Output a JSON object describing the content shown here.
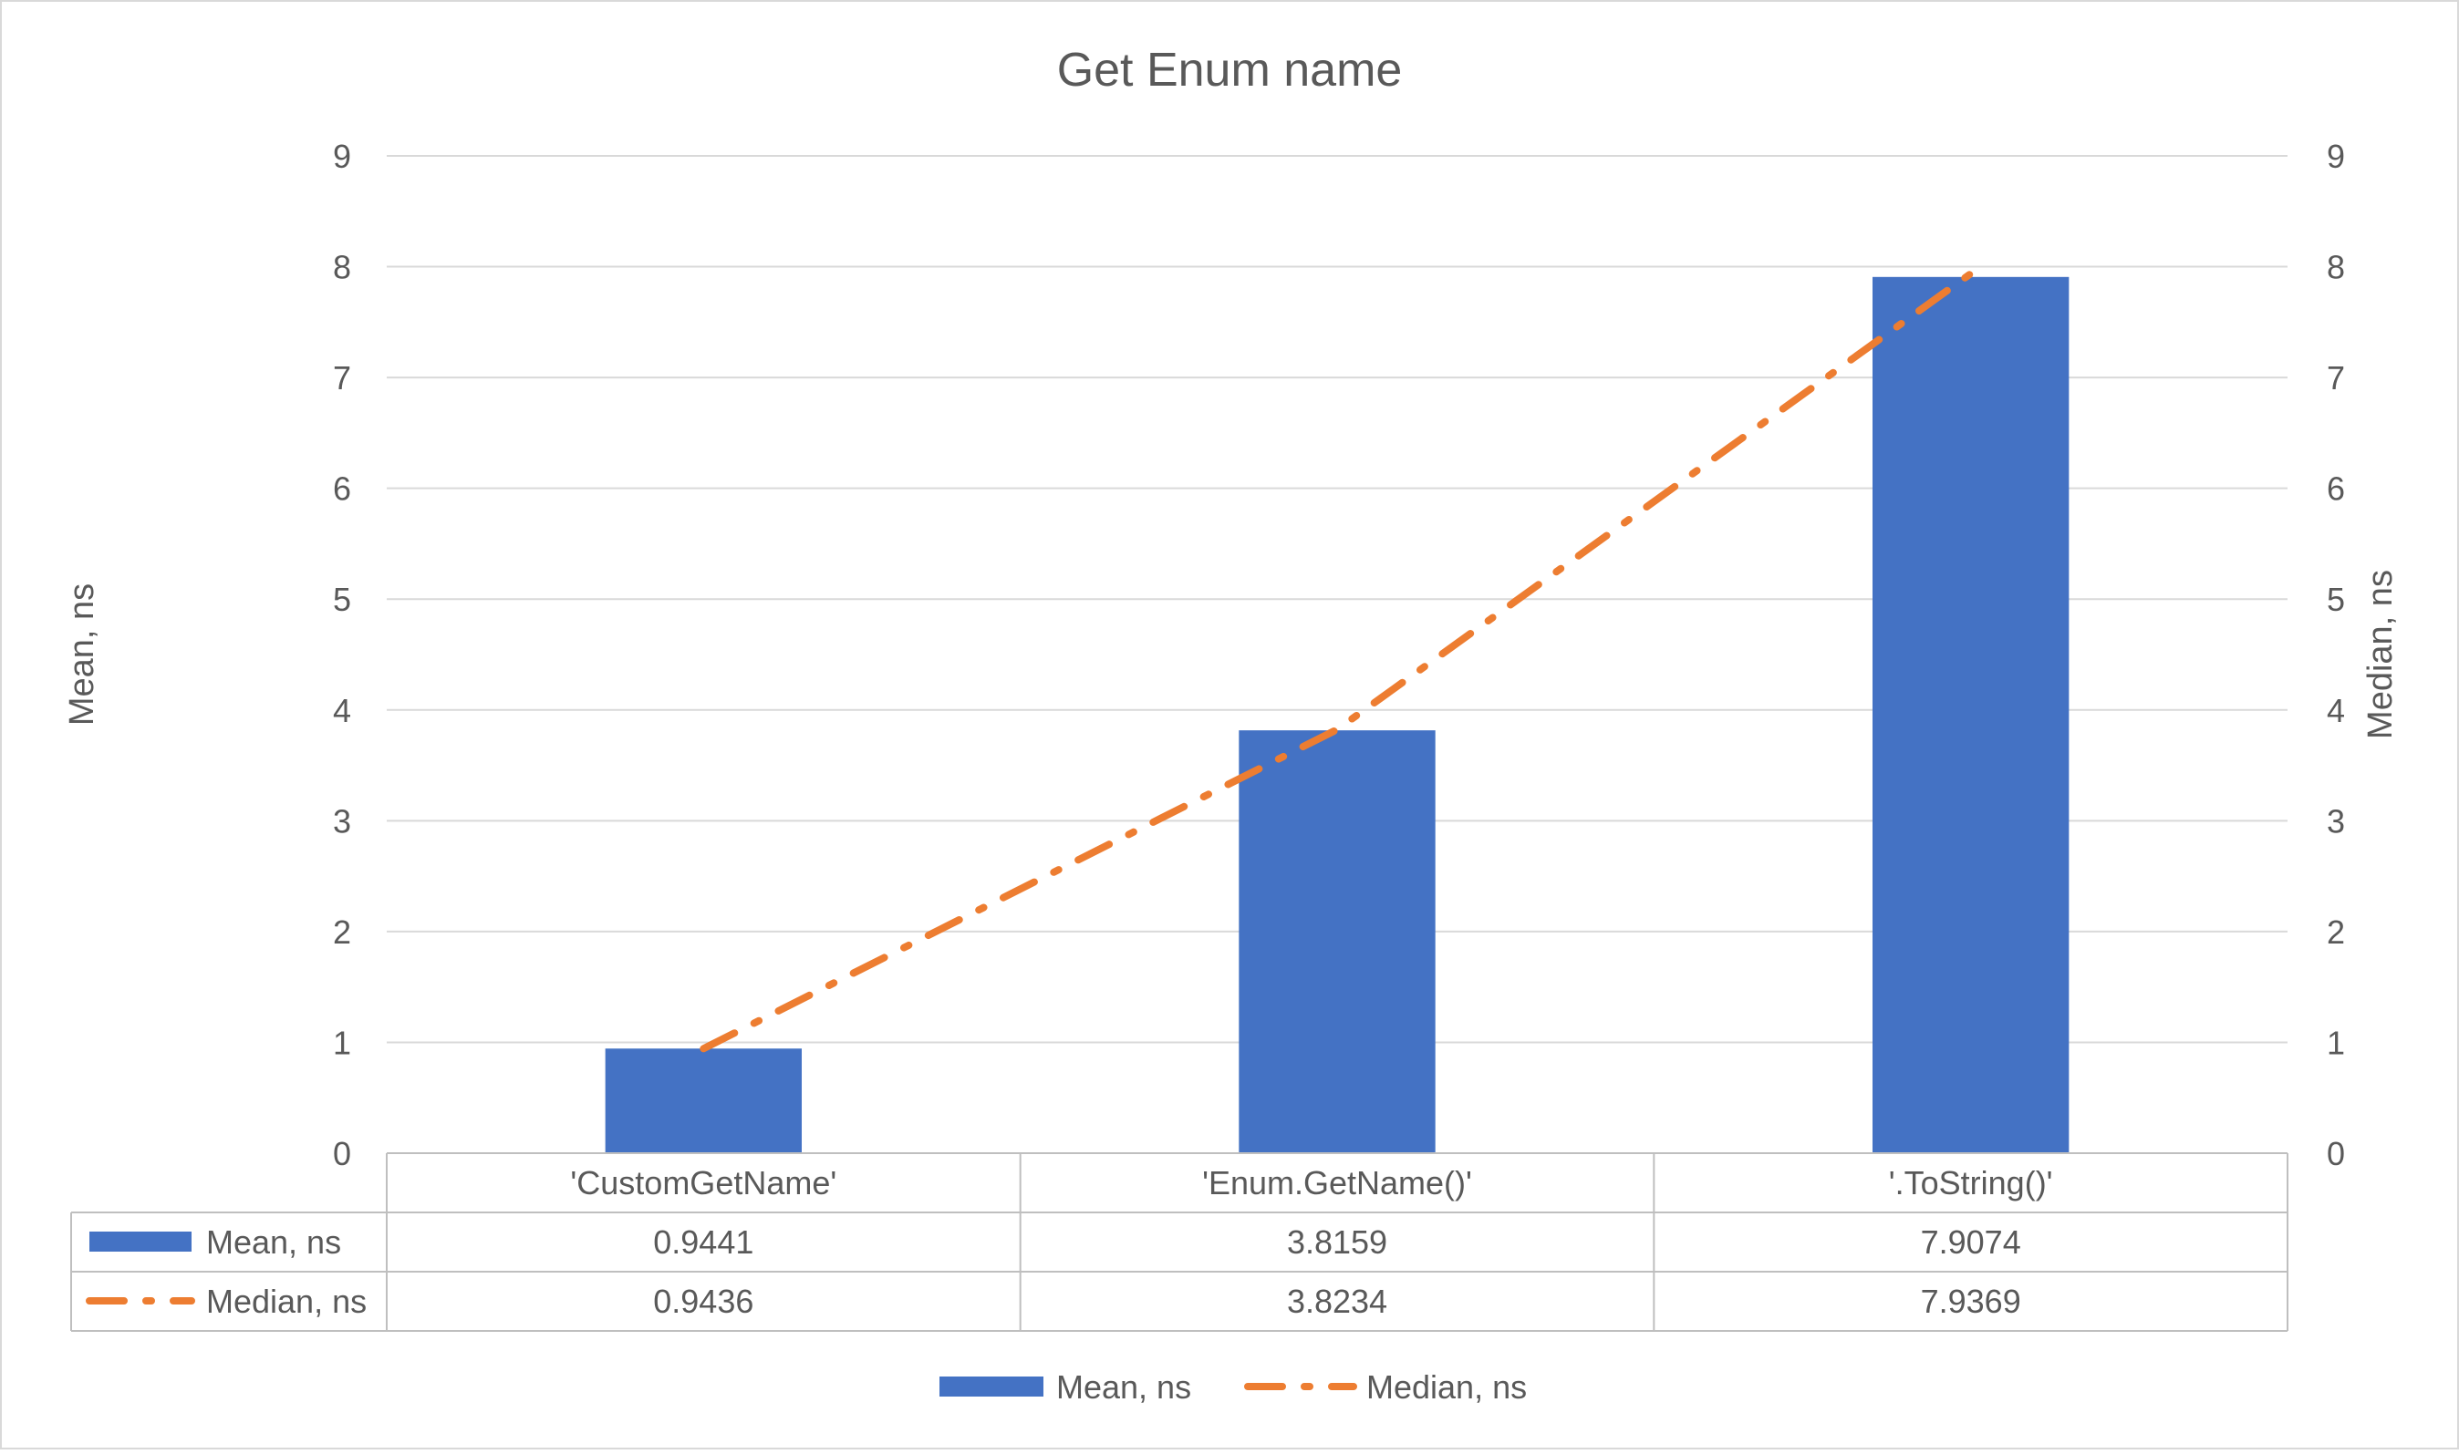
{
  "chart_data": {
    "type": "bar",
    "title": "Get Enum name",
    "categories": [
      "'CustomGetName'",
      "'Enum.GetName()'",
      "'.ToString()'"
    ],
    "series": [
      {
        "name": "Mean, ns",
        "type": "bar",
        "axis": "left",
        "values": [
          0.9441,
          3.8159,
          7.9074
        ],
        "value_labels": [
          "0.9441",
          "3.8159",
          "7.9074"
        ],
        "color": "#4472C4"
      },
      {
        "name": "Median, ns",
        "type": "line",
        "line_style": "dash-dot",
        "axis": "right",
        "values": [
          0.9436,
          3.8234,
          7.9369
        ],
        "value_labels": [
          "0.9436",
          "3.8234",
          "7.9369"
        ],
        "color": "#ED7D31"
      }
    ],
    "ylabel": "Mean, ns",
    "y2label": "Median, ns",
    "ylim": [
      0,
      9
    ],
    "y2lim": [
      0,
      9
    ],
    "yticks": [
      "0",
      "1",
      "2",
      "3",
      "4",
      "5",
      "6",
      "7",
      "8",
      "9"
    ],
    "grid": true,
    "legend": "bottom",
    "data_table": true
  }
}
